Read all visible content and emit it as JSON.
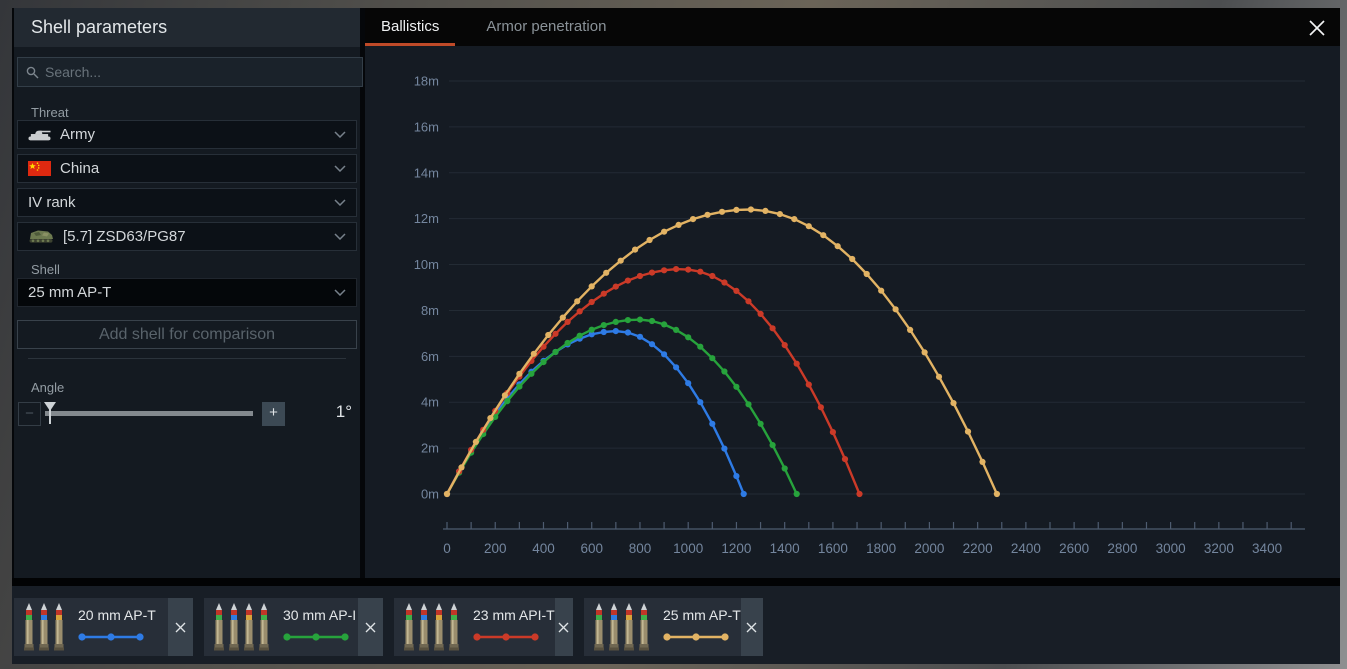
{
  "panel": {
    "title": "Shell parameters",
    "search": {
      "placeholder": "Search..."
    },
    "threat": {
      "label": "Threat",
      "dropdowns": [
        {
          "label": "Army",
          "icon": "tank-icon"
        },
        {
          "label": "China",
          "icon": "china-flag-icon"
        },
        {
          "label": "IV rank",
          "icon": "none"
        },
        {
          "label": "[5.7] ZSD63/PG87",
          "icon": "vehicle-icon"
        }
      ]
    },
    "shell": {
      "label": "Shell",
      "selected": "25 mm AP-T"
    },
    "add_button_label": "Add shell for comparison",
    "angle": {
      "label": "Angle",
      "value": "1°",
      "minus": "−",
      "plus": "+"
    }
  },
  "tabs": [
    {
      "label": "Ballistics",
      "active": true
    },
    {
      "label": "Armor penetration",
      "active": false
    }
  ],
  "accent_color": "#bf4a28",
  "chart_data": {
    "type": "line",
    "title": "",
    "xlabel": "",
    "ylabel": "",
    "xlim": [
      0,
      3560
    ],
    "ylim": [
      0,
      19
    ],
    "grid": true,
    "legend_position": "bottom-chips",
    "x_tick_step": 200,
    "x_minor_tick_step": 100,
    "x_tick_labels": [
      "0",
      "200",
      "400",
      "600",
      "800",
      "1000",
      "1200",
      "1400",
      "1600",
      "1800",
      "2000",
      "2200",
      "2400",
      "2600",
      "2800",
      "3000",
      "3200",
      "3400"
    ],
    "y_tick_values": [
      0,
      2,
      4,
      6,
      8,
      10,
      12,
      14,
      16,
      18
    ],
    "y_tick_labels": [
      "0m",
      "2m",
      "4m",
      "6m",
      "8m",
      "10m",
      "12m",
      "14m",
      "16m",
      "18m"
    ],
    "series": [
      {
        "name": "20 mm AP-T",
        "color": "#2e7be5",
        "points": [
          [
            0,
            0
          ],
          [
            50,
            0.98
          ],
          [
            100,
            1.88
          ],
          [
            150,
            2.72
          ],
          [
            200,
            3.48
          ],
          [
            250,
            4.17
          ],
          [
            300,
            4.78
          ],
          [
            350,
            5.33
          ],
          [
            400,
            5.8
          ],
          [
            450,
            6.19
          ],
          [
            500,
            6.52
          ],
          [
            550,
            6.77
          ],
          [
            600,
            6.96
          ],
          [
            650,
            7.06
          ],
          [
            700,
            7.1
          ],
          [
            750,
            7.04
          ],
          [
            800,
            6.85
          ],
          [
            850,
            6.53
          ],
          [
            900,
            6.09
          ],
          [
            950,
            5.52
          ],
          [
            1000,
            4.83
          ],
          [
            1050,
            4.0
          ],
          [
            1100,
            3.06
          ],
          [
            1150,
            1.98
          ],
          [
            1200,
            0.78
          ],
          [
            1230,
            0
          ]
        ]
      },
      {
        "name": "30 mm AP-I",
        "color": "#27a33c",
        "points": [
          [
            0,
            0
          ],
          [
            50,
            0.93
          ],
          [
            100,
            1.8
          ],
          [
            150,
            2.61
          ],
          [
            200,
            3.36
          ],
          [
            250,
            4.05
          ],
          [
            300,
            4.68
          ],
          [
            350,
            5.24
          ],
          [
            400,
            5.75
          ],
          [
            450,
            6.19
          ],
          [
            500,
            6.58
          ],
          [
            550,
            6.9
          ],
          [
            600,
            7.16
          ],
          [
            650,
            7.36
          ],
          [
            700,
            7.5
          ],
          [
            750,
            7.58
          ],
          [
            800,
            7.6
          ],
          [
            850,
            7.54
          ],
          [
            900,
            7.39
          ],
          [
            950,
            7.15
          ],
          [
            1000,
            6.83
          ],
          [
            1050,
            6.42
          ],
          [
            1100,
            5.92
          ],
          [
            1150,
            5.34
          ],
          [
            1200,
            4.67
          ],
          [
            1250,
            3.91
          ],
          [
            1300,
            3.06
          ],
          [
            1350,
            2.13
          ],
          [
            1400,
            1.11
          ],
          [
            1450,
            0
          ]
        ]
      },
      {
        "name": "23 mm API-T",
        "color": "#cb3a28",
        "points": [
          [
            0,
            0
          ],
          [
            50,
            0.98
          ],
          [
            100,
            1.92
          ],
          [
            150,
            2.8
          ],
          [
            200,
            3.62
          ],
          [
            250,
            4.4
          ],
          [
            300,
            5.12
          ],
          [
            350,
            5.8
          ],
          [
            400,
            6.42
          ],
          [
            450,
            6.98
          ],
          [
            500,
            7.5
          ],
          [
            550,
            7.96
          ],
          [
            600,
            8.37
          ],
          [
            650,
            8.73
          ],
          [
            700,
            9.04
          ],
          [
            750,
            9.3
          ],
          [
            800,
            9.5
          ],
          [
            850,
            9.65
          ],
          [
            900,
            9.75
          ],
          [
            950,
            9.8
          ],
          [
            1000,
            9.78
          ],
          [
            1050,
            9.69
          ],
          [
            1100,
            9.5
          ],
          [
            1150,
            9.22
          ],
          [
            1200,
            8.85
          ],
          [
            1250,
            8.4
          ],
          [
            1300,
            7.85
          ],
          [
            1350,
            7.22
          ],
          [
            1400,
            6.49
          ],
          [
            1450,
            5.68
          ],
          [
            1500,
            4.77
          ],
          [
            1550,
            3.78
          ],
          [
            1600,
            2.7
          ],
          [
            1650,
            1.52
          ],
          [
            1710,
            0
          ]
        ]
      },
      {
        "name": "25 mm AP-T",
        "color": "#e2b364",
        "points": [
          [
            0,
            0
          ],
          [
            60,
            1.16
          ],
          [
            120,
            2.27
          ],
          [
            180,
            3.31
          ],
          [
            240,
            4.3
          ],
          [
            300,
            5.24
          ],
          [
            360,
            6.11
          ],
          [
            420,
            6.93
          ],
          [
            480,
            7.69
          ],
          [
            540,
            8.4
          ],
          [
            600,
            9.05
          ],
          [
            660,
            9.64
          ],
          [
            720,
            10.17
          ],
          [
            780,
            10.65
          ],
          [
            840,
            11.07
          ],
          [
            900,
            11.43
          ],
          [
            960,
            11.73
          ],
          [
            1020,
            11.98
          ],
          [
            1080,
            12.17
          ],
          [
            1140,
            12.3
          ],
          [
            1200,
            12.38
          ],
          [
            1260,
            12.4
          ],
          [
            1320,
            12.34
          ],
          [
            1380,
            12.2
          ],
          [
            1440,
            11.98
          ],
          [
            1500,
            11.67
          ],
          [
            1560,
            11.28
          ],
          [
            1620,
            10.8
          ],
          [
            1680,
            10.24
          ],
          [
            1740,
            9.59
          ],
          [
            1800,
            8.86
          ],
          [
            1860,
            8.05
          ],
          [
            1920,
            7.15
          ],
          [
            1980,
            6.17
          ],
          [
            2040,
            5.11
          ],
          [
            2100,
            3.96
          ],
          [
            2160,
            2.72
          ],
          [
            2220,
            1.4
          ],
          [
            2280,
            0
          ]
        ]
      }
    ]
  },
  "shell_chips": [
    {
      "name": "20 mm AP-T",
      "color": "#2e7be5",
      "shell_count": 3
    },
    {
      "name": "30 mm AP-I",
      "color": "#27a33c",
      "shell_count": 4
    },
    {
      "name": "23 mm API-T",
      "color": "#cb3a28",
      "shell_count": 4
    },
    {
      "name": "25 mm AP-T",
      "color": "#e2b364",
      "shell_count": 4
    }
  ]
}
